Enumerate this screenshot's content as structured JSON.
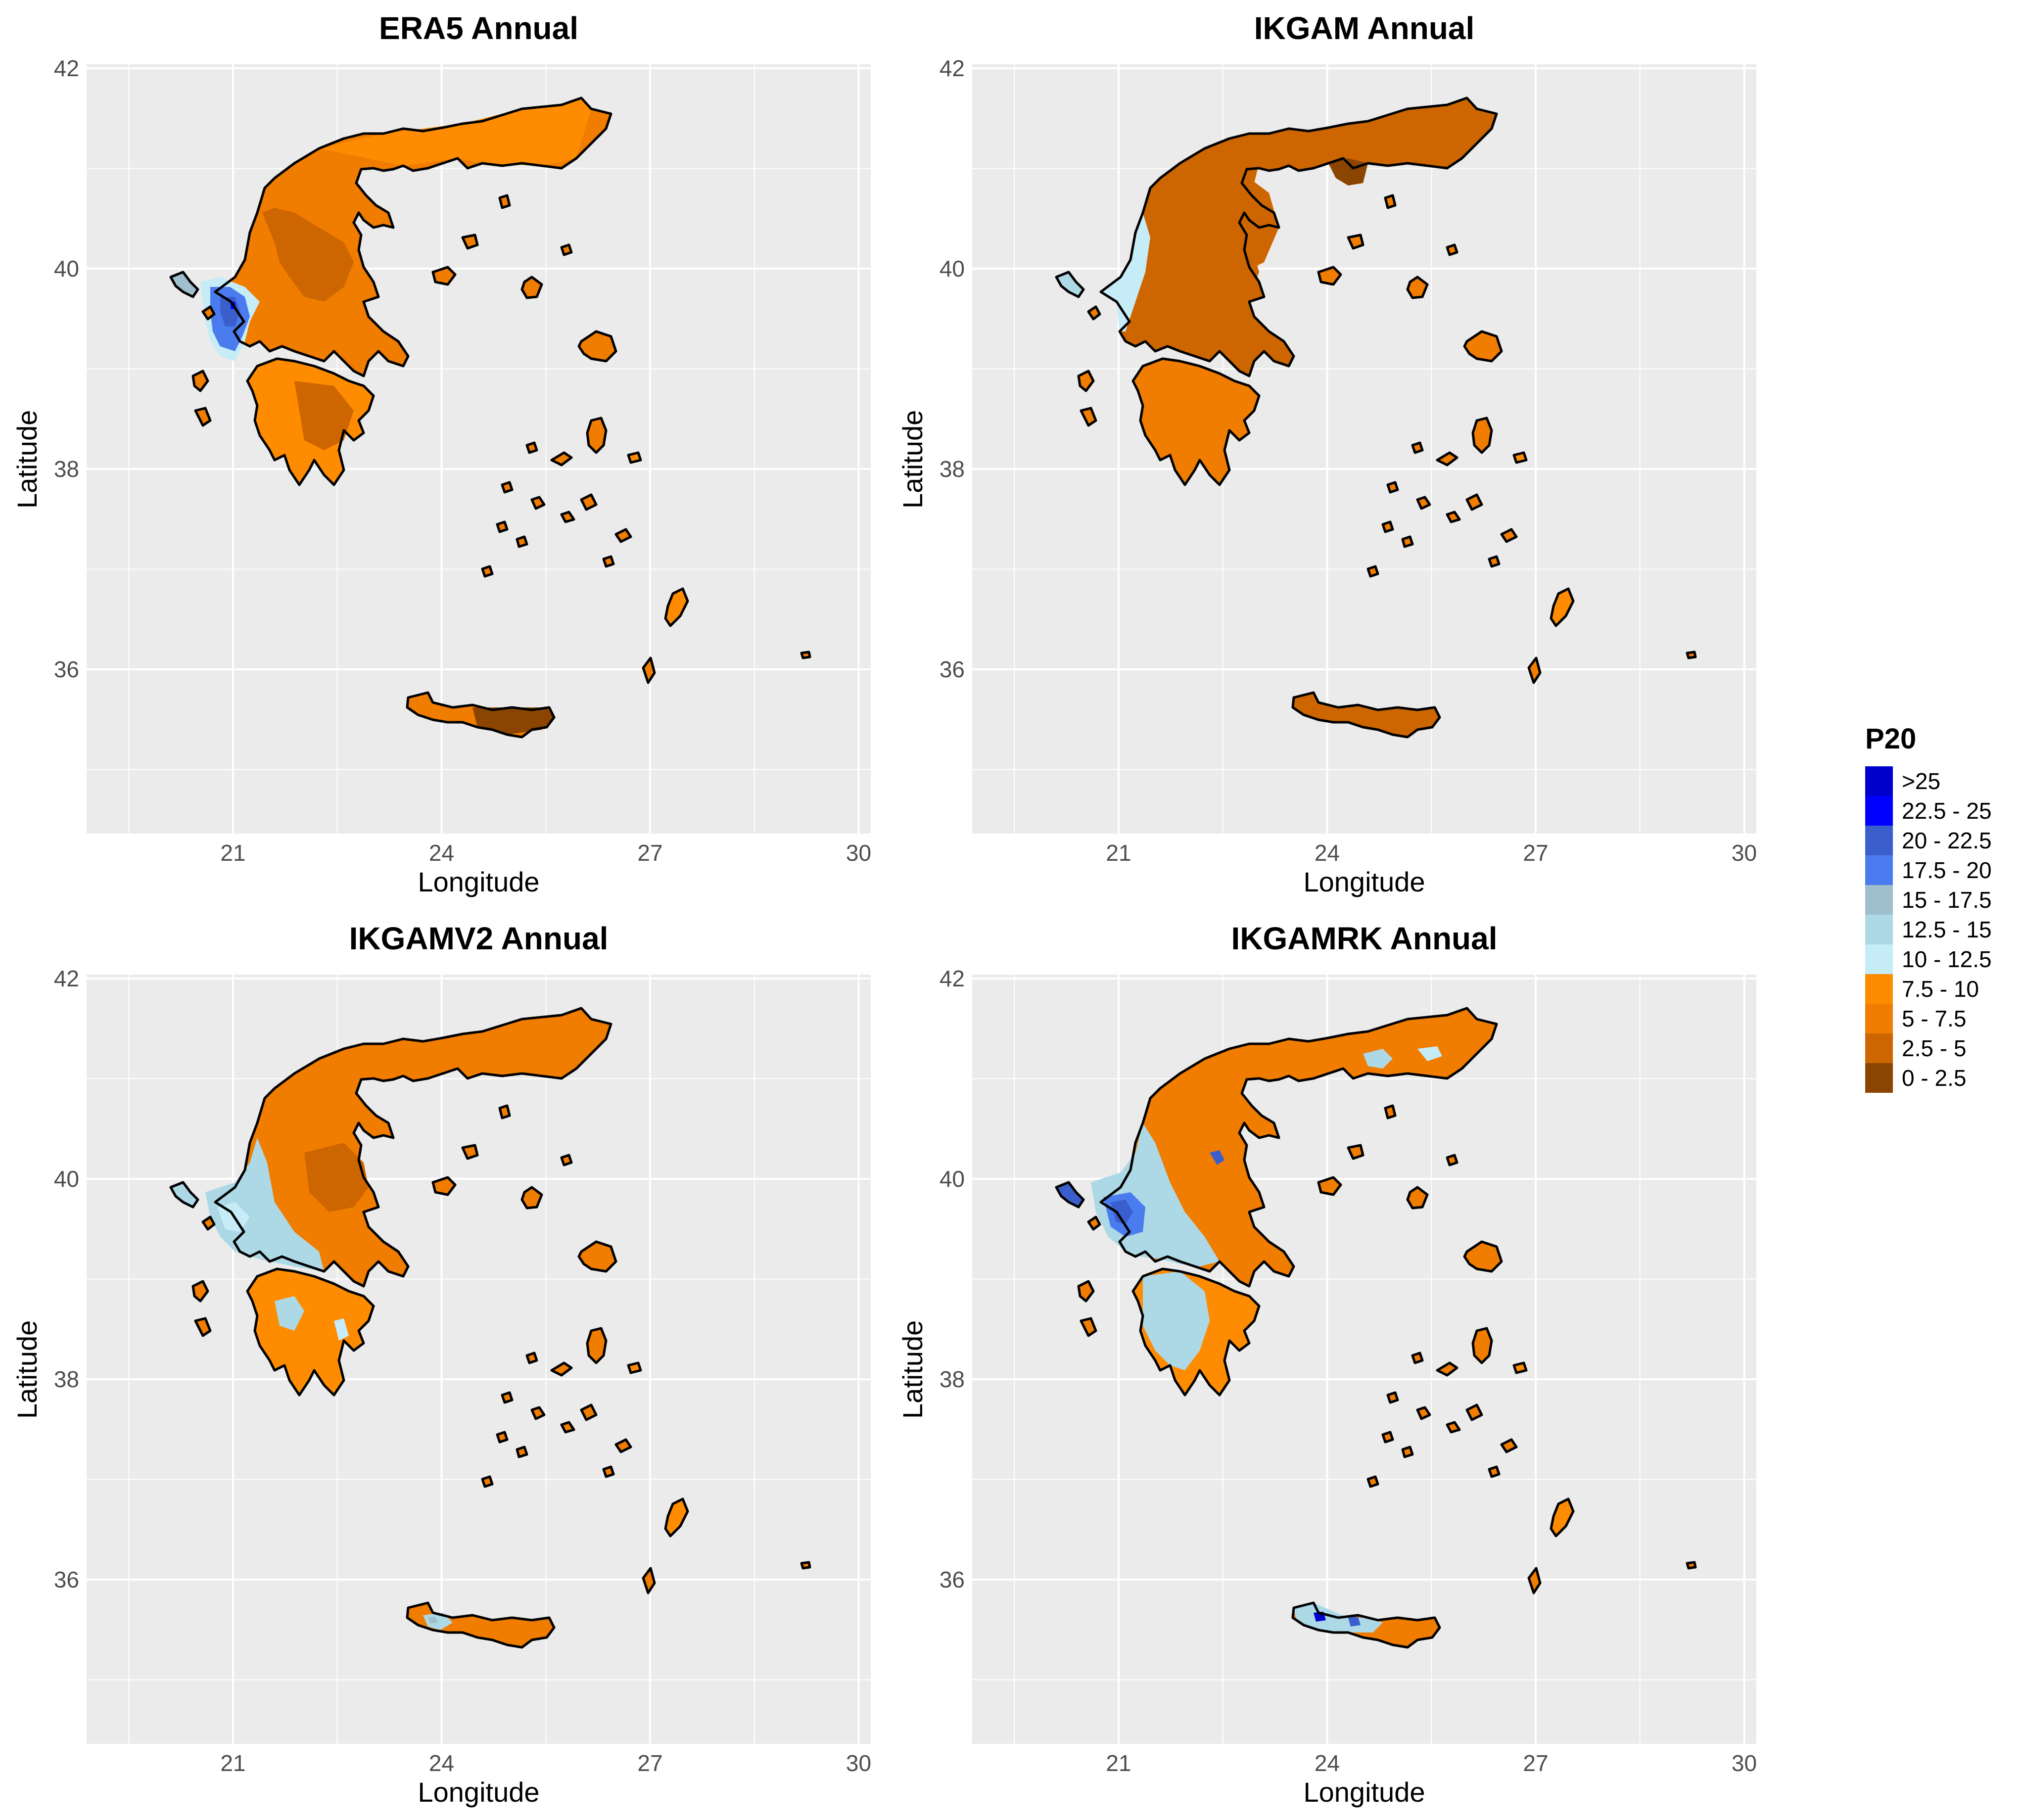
{
  "panels": [
    {
      "title": "ERA5 Annual",
      "key": "era5"
    },
    {
      "title": "IKGAM Annual",
      "key": "ikgam"
    },
    {
      "title": "IKGAMV2 Annual",
      "key": "ikgamv2"
    },
    {
      "title": "IKGAMRK Annual",
      "key": "ikgamrk"
    }
  ],
  "axes": {
    "xlabel": "Longitude",
    "ylabel": "Latitude",
    "xticks": [
      "21",
      "24",
      "27",
      "30"
    ],
    "yticks": [
      "42",
      "40",
      "38",
      "36"
    ]
  },
  "legend": {
    "title": "P20",
    "entries": [
      {
        "label": ">25",
        "color": "#0000cc"
      },
      {
        "label": "22.5 - 25",
        "color": "#0000ff"
      },
      {
        "label": "20 - 22.5",
        "color": "#3a5fcd"
      },
      {
        "label": "17.5 - 20",
        "color": "#4a7cf0"
      },
      {
        "label": "15 - 17.5",
        "color": "#9fbfcd"
      },
      {
        "label": "12.5 - 15",
        "color": "#add8e6"
      },
      {
        "label": "10 - 12.5",
        "color": "#c6ecf7"
      },
      {
        "label": "7.5 - 10",
        "color": "#ff8c00"
      },
      {
        "label": "5 - 7.5",
        "color": "#f07c00"
      },
      {
        "label": "2.5 - 5",
        "color": "#cd6600"
      },
      {
        "label": "0 - 2.5",
        "color": "#8b4500"
      }
    ]
  },
  "colors": {
    "panel_bg": "#ebebeb",
    "grid": "#ffffff",
    "outline": "#000000"
  }
}
